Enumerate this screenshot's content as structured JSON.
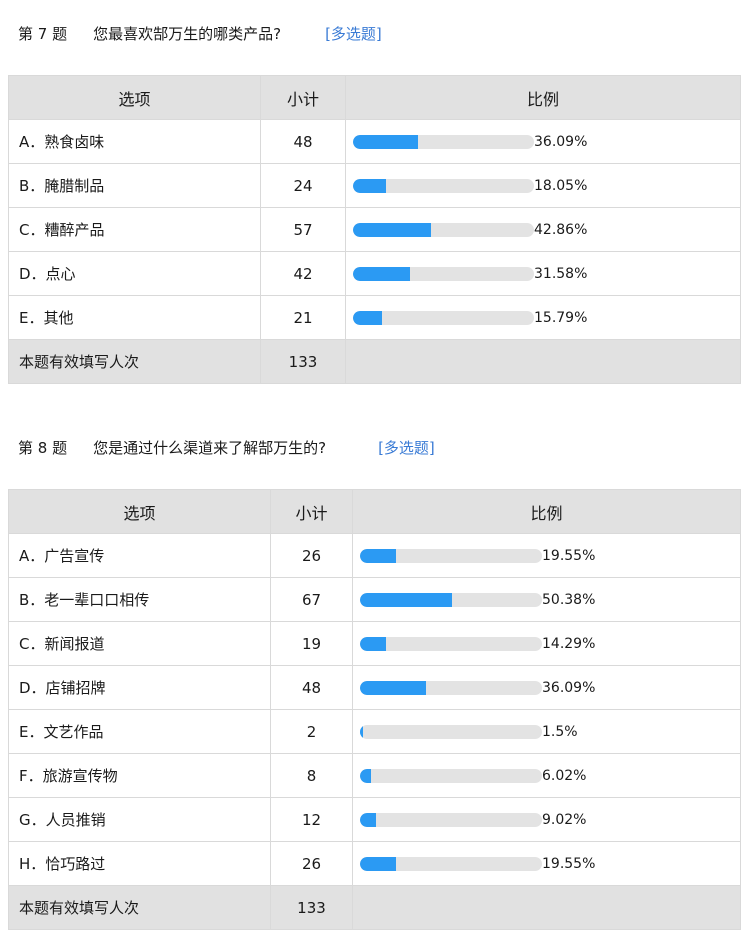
{
  "q7": {
    "num": "第 7 题",
    "text": "您最喜欢郜万生的哪类产品?",
    "type": "[多选题]",
    "headers": {
      "option": "选项",
      "count": "小计",
      "ratio": "比例"
    },
    "rows": [
      {
        "option": "A．熟食卤味",
        "count": "48",
        "pct_text": "36.09%",
        "pct": 36.09
      },
      {
        "option": "B．腌腊制品",
        "count": "24",
        "pct_text": "18.05%",
        "pct": 18.05
      },
      {
        "option": "C．糟醉产品",
        "count": "57",
        "pct_text": "42.86%",
        "pct": 42.86
      },
      {
        "option": "D．点心",
        "count": "42",
        "pct_text": "31.58%",
        "pct": 31.58
      },
      {
        "option": "E．其他",
        "count": "21",
        "pct_text": "15.79%",
        "pct": 15.79
      }
    ],
    "total_label": "本题有效填写人次",
    "total_count": "133"
  },
  "q8": {
    "num": "第 8 题",
    "text": "您是通过什么渠道来了解郜万生的?",
    "type": "[多选题]",
    "headers": {
      "option": "选项",
      "count": "小计",
      "ratio": "比例"
    },
    "rows": [
      {
        "option": "A．广告宣传",
        "count": "26",
        "pct_text": "19.55%",
        "pct": 19.55
      },
      {
        "option": "B．老一辈口口相传",
        "count": "67",
        "pct_text": "50.38%",
        "pct": 50.38
      },
      {
        "option": "C．新闻报道",
        "count": "19",
        "pct_text": "14.29%",
        "pct": 14.29
      },
      {
        "option": "D．店铺招牌",
        "count": "48",
        "pct_text": "36.09%",
        "pct": 36.09
      },
      {
        "option": "E．文艺作品",
        "count": "2",
        "pct_text": "1.5%",
        "pct": 1.5
      },
      {
        "option": "F．旅游宣传物",
        "count": "8",
        "pct_text": "6.02%",
        "pct": 6.02
      },
      {
        "option": "G．人员推销",
        "count": "12",
        "pct_text": "9.02%",
        "pct": 9.02
      },
      {
        "option": "H．恰巧路过",
        "count": "26",
        "pct_text": "19.55%",
        "pct": 19.55
      }
    ],
    "total_label": "本题有效填写人次",
    "total_count": "133"
  },
  "colors": {
    "bar_fill": "#2b9af3",
    "bar_track": "#e3e3e3",
    "header_bg": "#e1e1e1",
    "link": "#3a7bd5"
  }
}
